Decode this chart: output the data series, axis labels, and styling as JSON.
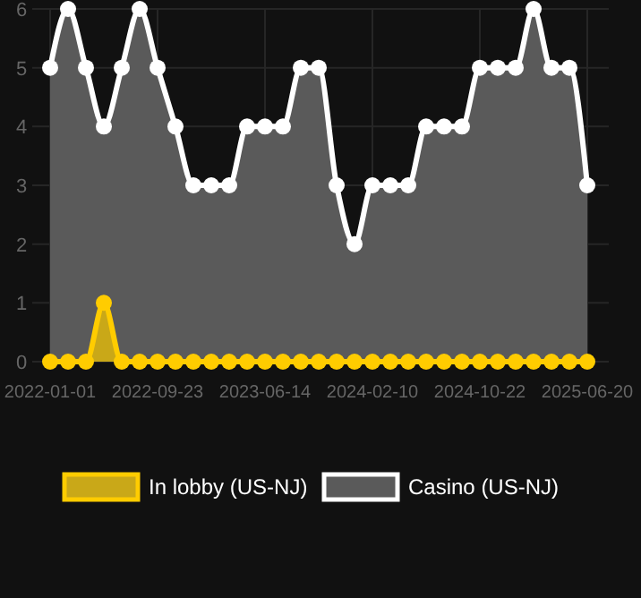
{
  "chart_data": {
    "type": "area",
    "categories": [
      "2022-01-01",
      null,
      null,
      null,
      null,
      null,
      "2022-09-23",
      null,
      null,
      null,
      null,
      null,
      "2023-06-14",
      null,
      null,
      null,
      null,
      null,
      "2024-02-10",
      null,
      null,
      null,
      null,
      null,
      "2024-10-22",
      null,
      null,
      null,
      null,
      null,
      "2025-06-20"
    ],
    "series": [
      {
        "name": "Casino (US-NJ)",
        "color": "#ffffff",
        "values": [
          5,
          6,
          5,
          4,
          5,
          6,
          5,
          4,
          3,
          3,
          3,
          4,
          4,
          4,
          5,
          5,
          3,
          2,
          3,
          3,
          3,
          4,
          4,
          4,
          5,
          5,
          5,
          6,
          5,
          5,
          3
        ]
      },
      {
        "name": "In lobby (US-NJ)",
        "color": "#ffcc00",
        "values": [
          0,
          0,
          0,
          1,
          0,
          0,
          0,
          0,
          0,
          0,
          0,
          0,
          0,
          0,
          0,
          0,
          0,
          0,
          0,
          0,
          0,
          0,
          0,
          0,
          0,
          0,
          0,
          0,
          0,
          0,
          0
        ]
      }
    ],
    "ylim": [
      0,
      6
    ],
    "yticks": [
      0,
      1,
      2,
      3,
      4,
      5,
      6
    ],
    "grid": true,
    "legend": "bottom",
    "marker": "circle"
  }
}
